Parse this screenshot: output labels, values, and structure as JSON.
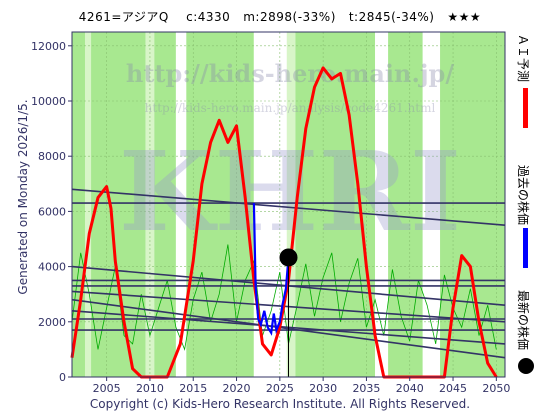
{
  "header": {
    "title": "4261=アジアQ    c:4330   m:2898(-33%)   t:2845(-34%)   ★★★"
  },
  "side_label": "Generated on Monday 2026/1/5.",
  "copyright": "Copyright (c) Kids-Hero Research Institute. All Rights Reserved.",
  "watermark": {
    "url1": "http://kids-hero.main.jp/",
    "url2": "http://kids-hero.main.jp/analysis/code4261.html",
    "big": "KHRI"
  },
  "legend": [
    {
      "label": "ＡＩ予測",
      "color": "#ff0000"
    },
    {
      "label": "過去の株価",
      "color": "#0000ff"
    },
    {
      "label": "最新の株価",
      "color": "#000000"
    }
  ],
  "colors": {
    "plot_bg": "#ffffff",
    "band_green": "#a8e890",
    "band_pale": "#d8f5c8",
    "band_white": "#ffffff",
    "ai_line": "#ff0000",
    "past_line": "#0000ff",
    "trend_line": "#333366",
    "thin_green": "#00aa00"
  },
  "chart_data": {
    "type": "line",
    "xlim": [
      2001,
      2051
    ],
    "ylim": [
      0,
      12500
    ],
    "x_ticks": [
      2005,
      2010,
      2015,
      2020,
      2025,
      2030,
      2035,
      2040,
      2045,
      2050
    ],
    "y_ticks": [
      0,
      2000,
      4000,
      6000,
      8000,
      10000,
      12000
    ],
    "bands": [
      {
        "x0": 2001,
        "x1": 2002.5,
        "kind": "green"
      },
      {
        "x0": 2002.5,
        "x1": 2003.2,
        "kind": "pale"
      },
      {
        "x0": 2003.2,
        "x1": 2009.5,
        "kind": "green"
      },
      {
        "x0": 2009.5,
        "x1": 2010.5,
        "kind": "pale"
      },
      {
        "x0": 2010.5,
        "x1": 2013.0,
        "kind": "green"
      },
      {
        "x0": 2013.0,
        "x1": 2014.2,
        "kind": "white"
      },
      {
        "x0": 2014.2,
        "x1": 2022.0,
        "kind": "green"
      },
      {
        "x0": 2022.0,
        "x1": 2025.8,
        "kind": "white"
      },
      {
        "x0": 2025.8,
        "x1": 2026.8,
        "kind": "pale"
      },
      {
        "x0": 2026.8,
        "x1": 2036.0,
        "kind": "green"
      },
      {
        "x0": 2036.0,
        "x1": 2037.5,
        "kind": "white"
      },
      {
        "x0": 2037.5,
        "x1": 2041.5,
        "kind": "green"
      },
      {
        "x0": 2041.5,
        "x1": 2043.5,
        "kind": "white"
      },
      {
        "x0": 2043.5,
        "x1": 2051,
        "kind": "green"
      }
    ],
    "ai_prediction": [
      [
        2001,
        700
      ],
      [
        2002,
        2800
      ],
      [
        2003,
        5200
      ],
      [
        2004,
        6500
      ],
      [
        2005,
        6900
      ],
      [
        2005.5,
        6100
      ],
      [
        2006,
        4200
      ],
      [
        2007,
        2000
      ],
      [
        2008,
        300
      ],
      [
        2009,
        0
      ],
      [
        2012,
        0
      ],
      [
        2013.5,
        1200
      ],
      [
        2015,
        4200
      ],
      [
        2016,
        7000
      ],
      [
        2017,
        8500
      ],
      [
        2018,
        9300
      ],
      [
        2019,
        8500
      ],
      [
        2020,
        9100
      ],
      [
        2021,
        6500
      ],
      [
        2022,
        3500
      ],
      [
        2023,
        1200
      ],
      [
        2024,
        800
      ],
      [
        2025,
        1800
      ],
      [
        2026,
        3500
      ],
      [
        2027,
        6500
      ],
      [
        2028,
        9000
      ],
      [
        2029,
        10500
      ],
      [
        2030,
        11200
      ],
      [
        2031,
        10800
      ],
      [
        2032,
        11000
      ],
      [
        2033,
        9500
      ],
      [
        2034,
        7000
      ],
      [
        2035,
        4000
      ],
      [
        2036,
        1500
      ],
      [
        2037,
        0
      ],
      [
        2044,
        0
      ],
      [
        2045,
        2500
      ],
      [
        2046,
        4400
      ],
      [
        2047,
        4000
      ],
      [
        2048,
        2000
      ],
      [
        2049,
        500
      ],
      [
        2050,
        0
      ]
    ],
    "past_price": [
      [
        2022.0,
        6300
      ],
      [
        2022.2,
        3300
      ],
      [
        2022.5,
        2100
      ],
      [
        2022.8,
        1900
      ],
      [
        2023.2,
        2400
      ],
      [
        2023.6,
        1800
      ],
      [
        2024.0,
        1600
      ],
      [
        2024.3,
        2300
      ],
      [
        2024.6,
        1700
      ],
      [
        2025.0,
        2000
      ],
      [
        2025.3,
        2600
      ],
      [
        2025.7,
        3200
      ],
      [
        2026.0,
        4330
      ]
    ],
    "latest": {
      "x": 2026.0,
      "y": 4330
    },
    "thin_oscillator": [
      [
        2001,
        2000
      ],
      [
        2002,
        4500
      ],
      [
        2003,
        3000
      ],
      [
        2004,
        1000
      ],
      [
        2005,
        2500
      ],
      [
        2006,
        4000
      ],
      [
        2007,
        1500
      ],
      [
        2008,
        1200
      ],
      [
        2009,
        3000
      ],
      [
        2010,
        1500
      ],
      [
        2011,
        2500
      ],
      [
        2012,
        3500
      ],
      [
        2013,
        1800
      ],
      [
        2014,
        1000
      ],
      [
        2015,
        2800
      ],
      [
        2016,
        3800
      ],
      [
        2017,
        2000
      ],
      [
        2018,
        3000
      ],
      [
        2019,
        4800
      ],
      [
        2020,
        2000
      ],
      [
        2021,
        3500
      ],
      [
        2022,
        4200
      ],
      [
        2023,
        1500
      ],
      [
        2024,
        2400
      ],
      [
        2025,
        3800
      ],
      [
        2026,
        1200
      ],
      [
        2027,
        2600
      ],
      [
        2028,
        4100
      ],
      [
        2029,
        2200
      ],
      [
        2030,
        3600
      ],
      [
        2031,
        4500
      ],
      [
        2032,
        2000
      ],
      [
        2033,
        3400
      ],
      [
        2034,
        4300
      ],
      [
        2035,
        1800
      ],
      [
        2036,
        2800
      ],
      [
        2037,
        1500
      ],
      [
        2038,
        3900
      ],
      [
        2039,
        2200
      ],
      [
        2040,
        1300
      ],
      [
        2041,
        3500
      ],
      [
        2042,
        2600
      ],
      [
        2043,
        1200
      ],
      [
        2044,
        3700
      ],
      [
        2045,
        2500
      ],
      [
        2046,
        1800
      ],
      [
        2047,
        3200
      ],
      [
        2048,
        1500
      ],
      [
        2049,
        2600
      ],
      [
        2050,
        1000
      ]
    ],
    "trend_lines": [
      [
        [
          2001,
          6800
        ],
        [
          2051,
          5500
        ]
      ],
      [
        [
          2001,
          6300
        ],
        [
          2051,
          6300
        ]
      ],
      [
        [
          2001,
          4000
        ],
        [
          2051,
          2600
        ]
      ],
      [
        [
          2001,
          3500
        ],
        [
          2051,
          3500
        ]
      ],
      [
        [
          2001,
          3100
        ],
        [
          2051,
          2000
        ]
      ],
      [
        [
          2001,
          2800
        ],
        [
          2051,
          700
        ]
      ],
      [
        [
          2001,
          2400
        ],
        [
          2051,
          1200
        ]
      ],
      [
        [
          2001,
          2100
        ],
        [
          2051,
          2100
        ]
      ],
      [
        [
          2001,
          1700
        ],
        [
          2051,
          1700
        ]
      ],
      [
        [
          2001,
          3300
        ],
        [
          2051,
          3300
        ]
      ]
    ]
  }
}
